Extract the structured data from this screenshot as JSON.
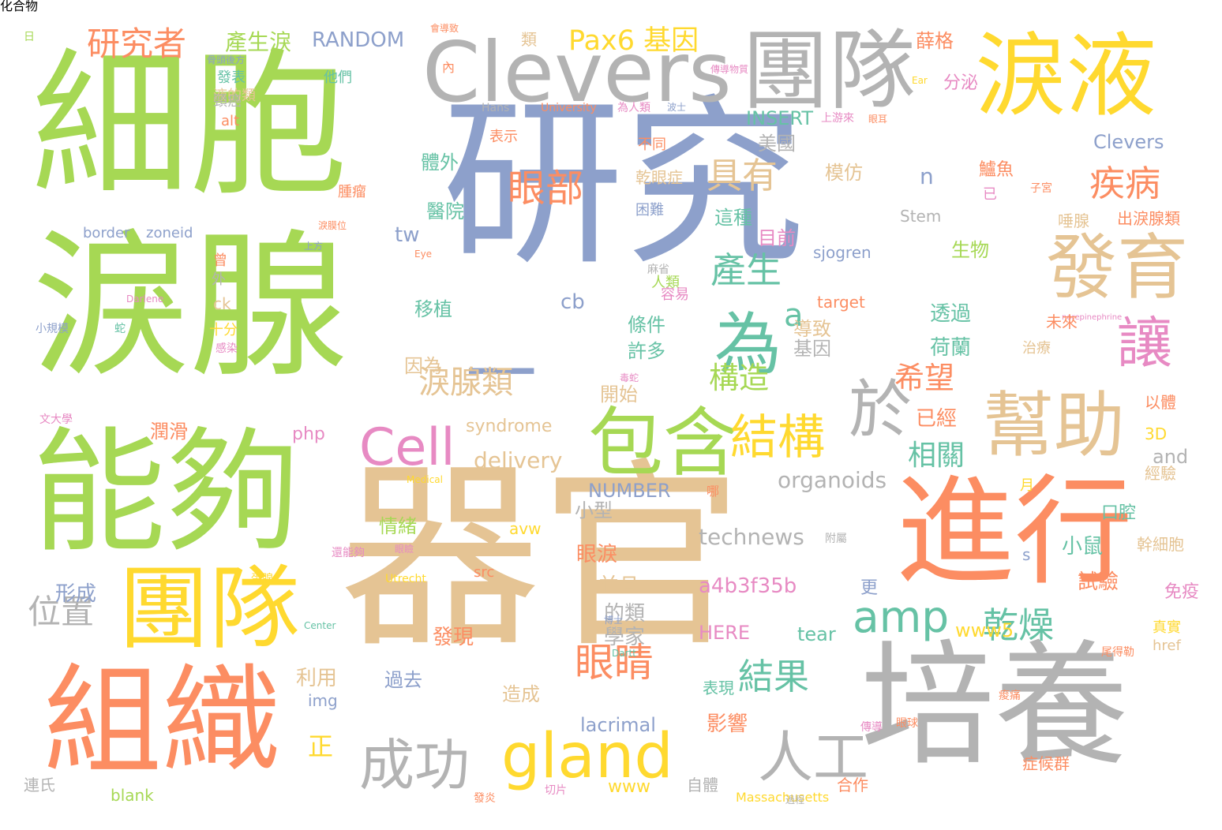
{
  "palette": {
    "green": "#a6d854",
    "blue": "#8da0cb",
    "tan": "#e5c494",
    "gray": "#b3b3b3",
    "orange": "#fc8d62",
    "yellow": "#ffd92f",
    "teal": "#66c2a5",
    "pink": "#e78ac3"
  },
  "words": [
    {
      "text": "研究",
      "color": "blue"
    },
    {
      "text": "器官",
      "color": "tan"
    },
    {
      "text": "細胞",
      "color": "green"
    },
    {
      "text": "淚腺",
      "color": "green"
    },
    {
      "text": "能夠",
      "color": "green"
    },
    {
      "text": "培養",
      "color": "gray"
    },
    {
      "text": "進行",
      "color": "orange"
    },
    {
      "text": "組織",
      "color": "orange"
    },
    {
      "text": "團隊",
      "color": "gray"
    },
    {
      "text": "團隊",
      "color": "yellow"
    },
    {
      "text": "淚液",
      "color": "yellow"
    },
    {
      "text": "Clevers",
      "color": "gray"
    },
    {
      "text": "發育",
      "color": "tan"
    },
    {
      "text": "幫助",
      "color": "tan"
    },
    {
      "text": "包含",
      "color": "green"
    },
    {
      "text": "為",
      "color": "teal"
    },
    {
      "text": "於",
      "color": "gray"
    },
    {
      "text": "讓",
      "color": "pink"
    },
    {
      "text": "gland",
      "color": "yellow"
    },
    {
      "text": "Cell",
      "color": "pink"
    },
    {
      "text": "一",
      "color": "blue"
    },
    {
      "text": "成功",
      "color": "gray"
    },
    {
      "text": "人工",
      "color": "gray"
    },
    {
      "text": "結構",
      "color": "yellow"
    },
    {
      "text": "amp",
      "color": "teal"
    },
    {
      "text": "眼睛",
      "color": "orange"
    },
    {
      "text": "研究者",
      "color": "orange"
    },
    {
      "text": "Pax6 基因",
      "color": "yellow"
    },
    {
      "text": "產生淚",
      "color": "green"
    },
    {
      "text": "RANDOM",
      "color": "blue"
    },
    {
      "text": "眼部",
      "color": "orange"
    },
    {
      "text": "具有",
      "color": "tan"
    },
    {
      "text": "疾病",
      "color": "orange"
    },
    {
      "text": "產生",
      "color": "teal"
    },
    {
      "text": "淚腺類",
      "color": "tan"
    },
    {
      "text": "希望",
      "color": "orange"
    },
    {
      "text": "構造",
      "color": "green"
    },
    {
      "text": "相關",
      "color": "teal"
    },
    {
      "text": "乾燥",
      "color": "teal"
    },
    {
      "text": "結果",
      "color": "teal"
    },
    {
      "text": "位置",
      "color": "gray"
    },
    {
      "text": "a",
      "color": "teal"
    },
    {
      "text": "delivery",
      "color": "tan"
    },
    {
      "text": "organoids",
      "color": "gray"
    },
    {
      "text": "technews",
      "color": "gray"
    },
    {
      "text": "a4b3f35b",
      "color": "pink"
    },
    {
      "text": "NUMBER",
      "color": "blue"
    },
    {
      "text": "INSERT",
      "color": "teal"
    },
    {
      "text": "Clevers",
      "color": "blue"
    },
    {
      "text": "sjogren",
      "color": "blue"
    },
    {
      "text": "lacrimal",
      "color": "blue"
    },
    {
      "text": "HERE",
      "color": "pink"
    },
    {
      "text": "tear",
      "color": "teal"
    },
    {
      "text": "www5",
      "color": "yellow"
    },
    {
      "text": "syndrome",
      "color": "tan"
    },
    {
      "text": "php",
      "color": "pink"
    },
    {
      "text": "border",
      "color": "blue"
    },
    {
      "text": "zoneid",
      "color": "blue"
    },
    {
      "text": "blank",
      "color": "green"
    },
    {
      "text": "Massachusetts",
      "color": "yellow"
    },
    {
      "text": "University",
      "color": "orange"
    },
    {
      "text": "Utrecht",
      "color": "yellow"
    },
    {
      "text": "target",
      "color": "orange"
    },
    {
      "text": "and",
      "color": "gray"
    },
    {
      "text": "tw",
      "color": "blue"
    },
    {
      "text": "cb",
      "color": "blue"
    },
    {
      "text": "n",
      "color": "blue"
    },
    {
      "text": "ck",
      "color": "tan"
    },
    {
      "text": "alt",
      "color": "orange"
    },
    {
      "text": "img",
      "color": "blue"
    },
    {
      "text": "src",
      "color": "orange"
    },
    {
      "text": "avw",
      "color": "yellow"
    },
    {
      "text": "href",
      "color": "tan"
    },
    {
      "text": "www",
      "color": "yellow"
    },
    {
      "text": "3D",
      "color": "yellow"
    },
    {
      "text": "s",
      "color": "blue"
    },
    {
      "text": "Stem",
      "color": "gray"
    },
    {
      "text": "Hans",
      "color": "gray"
    },
    {
      "text": "Medical",
      "color": "yellow"
    },
    {
      "text": "Center",
      "color": "teal"
    },
    {
      "text": "Eye",
      "color": "orange"
    },
    {
      "text": "Ear",
      "color": "yellow"
    },
    {
      "text": "Darlene",
      "color": "pink"
    },
    {
      "text": "Dartt",
      "color": "teal"
    },
    {
      "text": "norepinephrine",
      "color": "pink"
    },
    {
      "text": "移植",
      "color": "teal"
    },
    {
      "text": "條件",
      "color": "teal"
    },
    {
      "text": "許多",
      "color": "teal"
    },
    {
      "text": "開始",
      "color": "tan"
    },
    {
      "text": "因為",
      "color": "tan"
    },
    {
      "text": "基因",
      "color": "gray"
    },
    {
      "text": "導致",
      "color": "tan"
    },
    {
      "text": "透過",
      "color": "teal"
    },
    {
      "text": "荷蘭",
      "color": "teal"
    },
    {
      "text": "已經",
      "color": "orange"
    },
    {
      "text": "小鼠",
      "color": "teal"
    },
    {
      "text": "試驗",
      "color": "orange"
    },
    {
      "text": "眼淚",
      "color": "orange"
    },
    {
      "text": "並且",
      "color": "tan"
    },
    {
      "text": "的類",
      "color": "gray"
    },
    {
      "text": "學家",
      "color": "gray"
    },
    {
      "text": "發現",
      "color": "orange"
    },
    {
      "text": "影響",
      "color": "orange"
    },
    {
      "text": "形成",
      "color": "blue"
    },
    {
      "text": "利用",
      "color": "tan"
    },
    {
      "text": "正",
      "color": "yellow"
    },
    {
      "text": "過去",
      "color": "blue"
    },
    {
      "text": "造成",
      "color": "tan"
    },
    {
      "text": "情緒",
      "color": "green"
    },
    {
      "text": "潤滑",
      "color": "orange"
    },
    {
      "text": "目前",
      "color": "pink"
    },
    {
      "text": "生物",
      "color": "green"
    },
    {
      "text": "體外",
      "color": "teal"
    },
    {
      "text": "醫院",
      "color": "teal"
    },
    {
      "text": "這種",
      "color": "teal"
    },
    {
      "text": "表示",
      "color": "orange"
    },
    {
      "text": "乾眼症",
      "color": "tan"
    },
    {
      "text": "模仿",
      "color": "tan"
    },
    {
      "text": "鱸魚",
      "color": "orange"
    },
    {
      "text": "唾腺",
      "color": "tan"
    },
    {
      "text": "出淚腺類",
      "color": "orange"
    },
    {
      "text": "未來",
      "color": "orange"
    },
    {
      "text": "治療",
      "color": "tan"
    },
    {
      "text": "以體",
      "color": "orange"
    },
    {
      "text": "經驗",
      "color": "tan"
    },
    {
      "text": "口腔",
      "color": "teal"
    },
    {
      "text": "幹細胞",
      "color": "tan"
    },
    {
      "text": "免疫",
      "color": "pink"
    },
    {
      "text": "更",
      "color": "blue"
    },
    {
      "text": "表現",
      "color": "teal"
    },
    {
      "text": "自體",
      "color": "gray"
    },
    {
      "text": "合作",
      "color": "orange"
    },
    {
      "text": "症候群",
      "color": "orange"
    },
    {
      "text": "連氏",
      "color": "gray"
    },
    {
      "text": "薛格",
      "color": "orange"
    },
    {
      "text": "他們",
      "color": "teal"
    },
    {
      "text": "液的類",
      "color": "tan"
    },
    {
      "text": "頸癌",
      "color": "gray"
    },
    {
      "text": "發表",
      "color": "teal"
    },
    {
      "text": "分泌",
      "color": "pink"
    },
    {
      "text": "類",
      "color": "tan"
    },
    {
      "text": "內",
      "color": "orange"
    },
    {
      "text": "美國",
      "color": "gray"
    },
    {
      "text": "曾",
      "color": "orange"
    },
    {
      "text": "人類",
      "color": "green"
    },
    {
      "text": "外",
      "color": "gray"
    },
    {
      "text": "十分",
      "color": "yellow"
    },
    {
      "text": "小型",
      "color": "gray"
    },
    {
      "text": "困難",
      "color": "blue"
    },
    {
      "text": "真實",
      "color": "yellow"
    },
    {
      "text": "月",
      "color": "yellow"
    },
    {
      "text": "日",
      "color": "green"
    },
    {
      "text": "會導致",
      "color": "orange"
    },
    {
      "text": "骨頭後方",
      "color": "blue"
    },
    {
      "text": "為人類",
      "color": "pink"
    },
    {
      "text": "波士",
      "color": "blue"
    },
    {
      "text": "上游來",
      "color": "pink"
    },
    {
      "text": "眼耳",
      "color": "orange"
    },
    {
      "text": "傳導物質",
      "color": "pink"
    },
    {
      "text": "眼瞼",
      "color": "pink"
    },
    {
      "text": "博士",
      "color": "blue"
    },
    {
      "text": "蛇",
      "color": "teal"
    },
    {
      "text": "感染",
      "color": "pink"
    },
    {
      "text": "毒蛇",
      "color": "pink"
    },
    {
      "text": "小規模",
      "color": "blue"
    },
    {
      "text": "文大學",
      "color": "pink"
    },
    {
      "text": "還能夠",
      "color": "pink"
    },
    {
      "text": "發炎",
      "color": "orange"
    },
    {
      "text": "蛋腺",
      "color": "yellow"
    },
    {
      "text": "眼球",
      "color": "orange"
    },
    {
      "text": "痠痛",
      "color": "orange"
    },
    {
      "text": "腫瘤",
      "color": "orange"
    },
    {
      "text": "麻省",
      "color": "gray"
    },
    {
      "text": "容易",
      "color": "pink"
    },
    {
      "text": "已",
      "color": "pink"
    },
    {
      "text": "不同",
      "color": "orange"
    },
    {
      "text": "子宮",
      "color": "orange"
    },
    {
      "text": "淚膜位",
      "color": "orange"
    },
    {
      "text": "切片",
      "color": "pink"
    },
    {
      "text": "尾得勒",
      "color": "orange"
    },
    {
      "text": "過程",
      "color": "gray"
    },
    {
      "text": "傳導",
      "color": "pink"
    },
    {
      "text": "哪",
      "color": "orange"
    },
    {
      "text": "附屬",
      "color": "gray"
    },
    {
      "text": "上方",
      "color": "blue"
    },
    {
      "text": "化合物",
      "color": "gray"
    }
  ]
}
